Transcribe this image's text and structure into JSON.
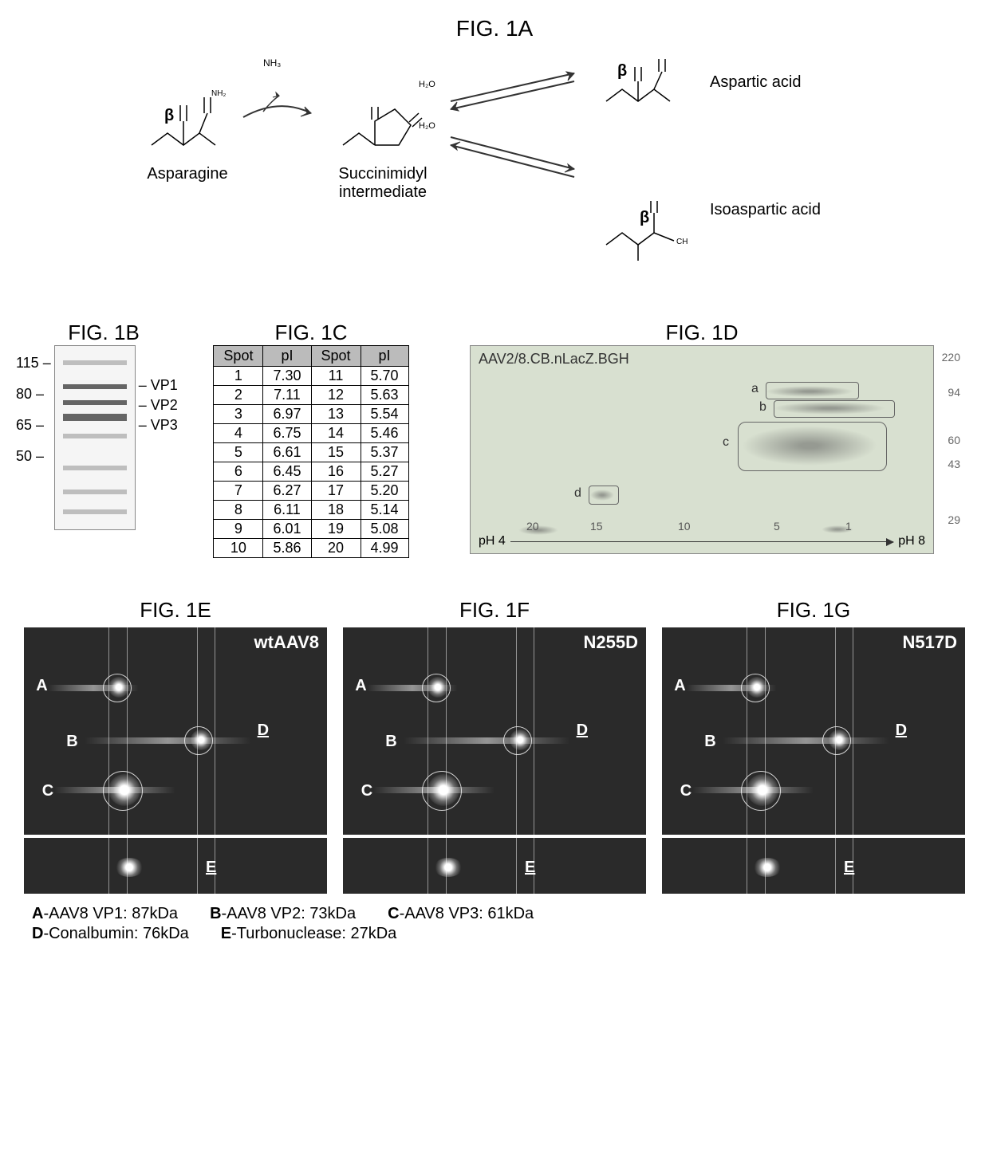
{
  "fig1a": {
    "title": "FIG. 1A",
    "molecules": {
      "asparagine": "Asparagine",
      "succinimidyl": "Succinimidyl\nintermediate",
      "aspartic": "Aspartic acid",
      "isoaspartic": "Isoaspartic acid"
    },
    "beta": "β",
    "byproduct": "NH₃",
    "water": "H₂O"
  },
  "fig1b": {
    "title": "FIG. 1B",
    "mw_markers": [
      "115",
      "80",
      "65",
      "50"
    ],
    "bands": [
      "VP1",
      "VP2",
      "VP3"
    ]
  },
  "fig1c": {
    "title": "FIG. 1C",
    "headers": [
      "Spot",
      "pI",
      "Spot",
      "pI"
    ],
    "rows": [
      [
        "1",
        "7.30",
        "11",
        "5.70"
      ],
      [
        "2",
        "7.11",
        "12",
        "5.63"
      ],
      [
        "3",
        "6.97",
        "13",
        "5.54"
      ],
      [
        "4",
        "6.75",
        "14",
        "5.46"
      ],
      [
        "5",
        "6.61",
        "15",
        "5.37"
      ],
      [
        "6",
        "6.45",
        "16",
        "5.27"
      ],
      [
        "7",
        "6.27",
        "17",
        "5.20"
      ],
      [
        "8",
        "6.11",
        "18",
        "5.14"
      ],
      [
        "9",
        "6.01",
        "19",
        "5.08"
      ],
      [
        "10",
        "5.86",
        "20",
        "4.99"
      ]
    ]
  },
  "fig1d": {
    "title": "FIG. 1D",
    "caption": "AAV2/8.CB.nLacZ.BGH",
    "mw_right": [
      "220",
      "94",
      "60",
      "43",
      "29"
    ],
    "boxes": [
      "a",
      "b",
      "c",
      "d"
    ],
    "ticks": [
      "20",
      "15",
      "10",
      "5",
      "1"
    ],
    "ph_low": "pH 4",
    "ph_high": "pH 8"
  },
  "fig_efg": {
    "panels": [
      {
        "title_fig": "FIG. 1E",
        "title": "wtAAV8"
      },
      {
        "title_fig": "FIG. 1F",
        "title": "N255D"
      },
      {
        "title_fig": "FIG. 1G",
        "title": "N517D"
      }
    ],
    "spot_labels": [
      "A",
      "B",
      "C",
      "D",
      "E"
    ],
    "legend": [
      {
        "k": "A",
        "v": "-AAV8 VP1: 87kDa"
      },
      {
        "k": "B",
        "v": "-AAV8 VP2: 73kDa"
      },
      {
        "k": "C",
        "v": "-AAV8 VP3: 61kDa"
      },
      {
        "k": "D",
        "v": "-Conalbumin: 76kDa"
      },
      {
        "k": "E",
        "v": "-Turbonuclease: 27kDa"
      }
    ],
    "colors": {
      "dark_bg": "#2a2a2a",
      "light_bg": "#d8e0d0"
    }
  }
}
